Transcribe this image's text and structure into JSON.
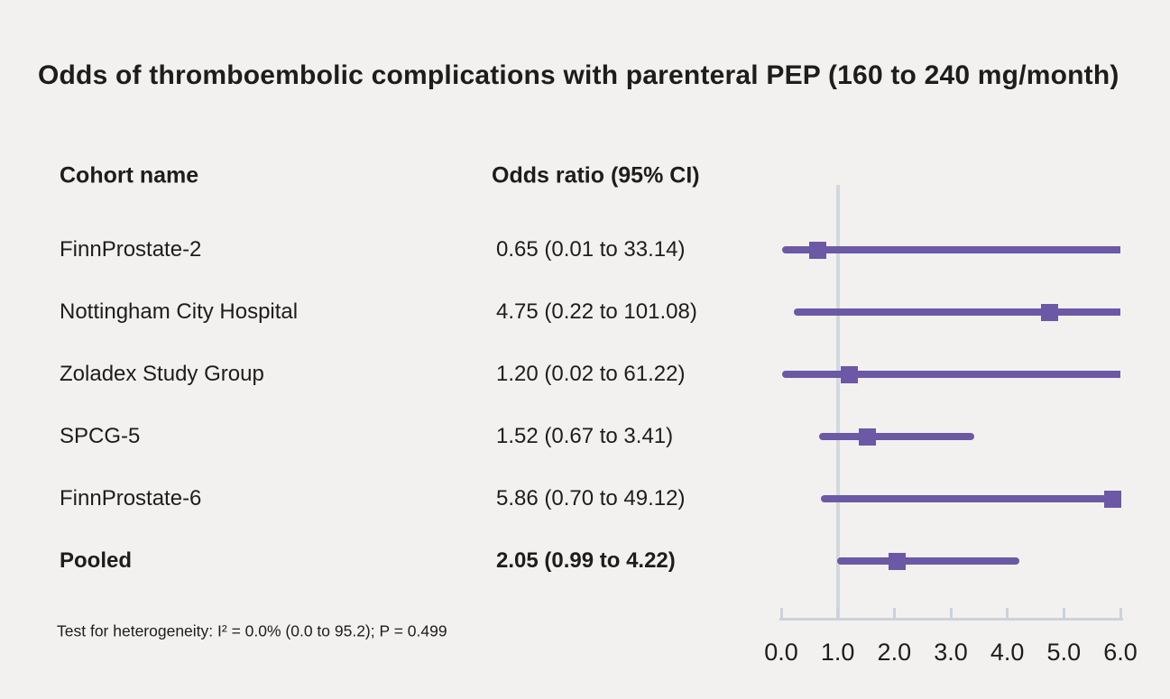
{
  "chart_data": {
    "type": "forest",
    "title": "Odds of thromboembolic complications with parenteral PEP (160 to 240 mg/month)",
    "columns": {
      "cohort": "Cohort name",
      "odds_ratio": "Odds ratio (95% CI)"
    },
    "xlim": [
      0.0,
      6.0
    ],
    "x_ticks": [
      0.0,
      1.0,
      2.0,
      3.0,
      4.0,
      5.0,
      6.0
    ],
    "x_tick_labels": [
      "0.0",
      "1.0",
      "2.0",
      "3.0",
      "4.0",
      "5.0",
      "6.0"
    ],
    "reference_line_x": 1.0,
    "rows": [
      {
        "label": "FinnProstate-2",
        "or": 0.65,
        "ci_low": 0.01,
        "ci_high": 33.14,
        "display": "0.65 (0.01 to 33.14)",
        "pooled": false
      },
      {
        "label": "Nottingham City Hospital",
        "or": 4.75,
        "ci_low": 0.22,
        "ci_high": 101.08,
        "display": "4.75 (0.22 to 101.08)",
        "pooled": false
      },
      {
        "label": "Zoladex Study Group",
        "or": 1.2,
        "ci_low": 0.02,
        "ci_high": 61.22,
        "display": "1.20 (0.02 to 61.22)",
        "pooled": false
      },
      {
        "label": "SPCG-5",
        "or": 1.52,
        "ci_low": 0.67,
        "ci_high": 3.41,
        "display": "1.52 (0.67 to 3.41)",
        "pooled": false
      },
      {
        "label": "FinnProstate-6",
        "or": 5.86,
        "ci_low": 0.7,
        "ci_high": 49.12,
        "display": "5.86 (0.70 to 49.12)",
        "pooled": false
      },
      {
        "label": "Pooled",
        "or": 2.05,
        "ci_low": 0.99,
        "ci_high": 4.22,
        "display": "2.05 (0.99 to 4.22)",
        "pooled": true
      }
    ],
    "footnote": "Test for heterogeneity: I² = 0.0% (0.0 to 95.2); P = 0.499",
    "colors": {
      "marker": "#6b59a6",
      "ci_line": "#6b59a6",
      "reference_line": "#d3d8de",
      "axis": "#ccd2d9",
      "background": "#f2f1f0",
      "text": "#1d1d1b"
    }
  }
}
